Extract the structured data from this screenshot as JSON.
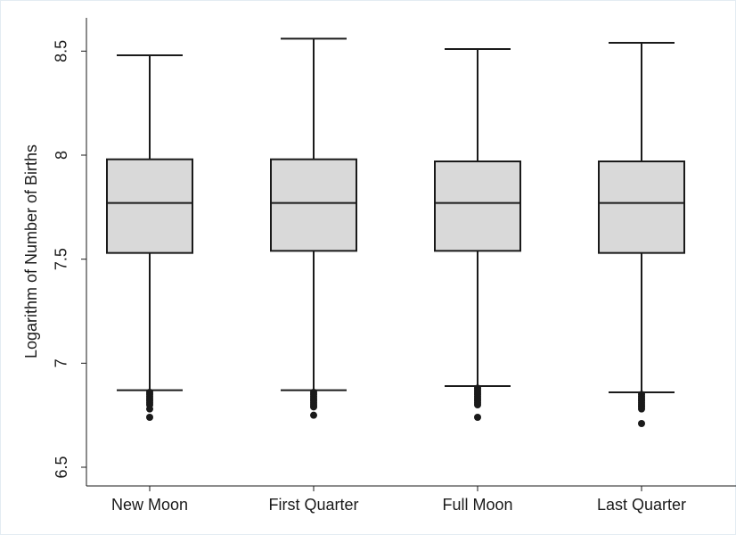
{
  "chart_data": {
    "type": "box",
    "y_label": "Logarithm of Number of Births",
    "categories": [
      "New Moon",
      "First Quarter",
      "Full Moon",
      "Last Quarter"
    ],
    "boxes": [
      {
        "whisker_low": 6.87,
        "q1": 7.53,
        "median": 7.77,
        "q3": 7.98,
        "whisker_high": 8.48,
        "outliers": [
          6.86,
          6.85,
          6.84,
          6.83,
          6.82,
          6.81,
          6.8,
          6.78,
          6.74
        ]
      },
      {
        "whisker_low": 6.87,
        "q1": 7.54,
        "median": 7.77,
        "q3": 7.98,
        "whisker_high": 8.56,
        "outliers": [
          6.86,
          6.85,
          6.84,
          6.83,
          6.82,
          6.81,
          6.8,
          6.79,
          6.75
        ]
      },
      {
        "whisker_low": 6.89,
        "q1": 7.54,
        "median": 7.77,
        "q3": 7.97,
        "whisker_high": 8.51,
        "outliers": [
          6.88,
          6.87,
          6.86,
          6.85,
          6.84,
          6.83,
          6.82,
          6.81,
          6.8,
          6.74
        ]
      },
      {
        "whisker_low": 6.86,
        "q1": 7.53,
        "median": 7.77,
        "q3": 7.97,
        "whisker_high": 8.54,
        "outliers": [
          6.85,
          6.84,
          6.83,
          6.82,
          6.81,
          6.8,
          6.79,
          6.78,
          6.71
        ]
      }
    ],
    "color": "#d9d9d9",
    "ylim": [
      6.41,
      8.66
    ],
    "yticks": [
      6.5,
      7,
      7.5,
      8,
      8.5
    ],
    "grid": false
  }
}
